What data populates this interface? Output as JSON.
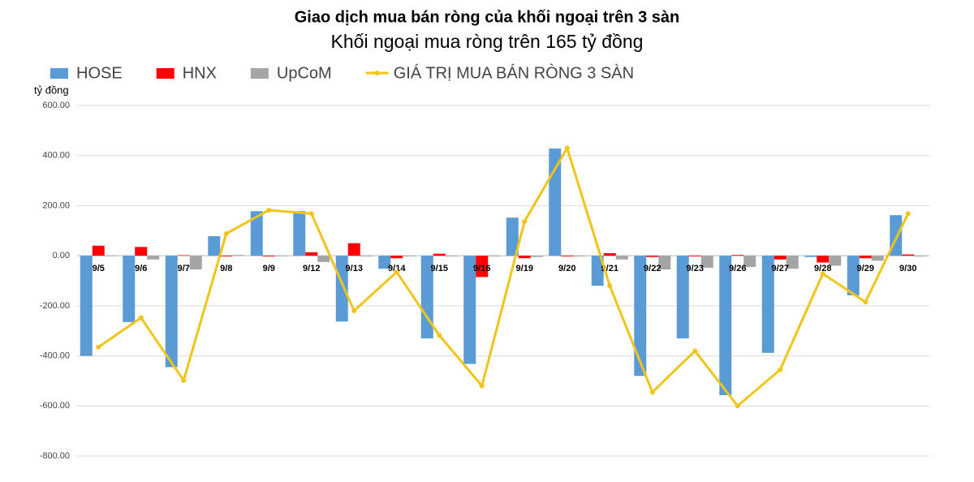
{
  "chart_data": {
    "type": "bar",
    "title": "Giao dịch mua bán ròng của khối ngoại trên 3 sàn",
    "subtitle": "Khối ngoại mua ròng trên 165 tỷ đồng",
    "y_label": "tỷ đồng",
    "categories": [
      "9/5",
      "9/6",
      "9/7",
      "9/8",
      "9/9",
      "9/12",
      "9/13",
      "9/14",
      "9/15",
      "9/16",
      "9/19",
      "9/20",
      "9/21",
      "9/22",
      "9/23",
      "9/26",
      "9/27",
      "9/28",
      "9/29",
      "9/30"
    ],
    "series": [
      {
        "name": "HOSE",
        "type": "bar",
        "color": "#5b9bd5",
        "values": [
          -400,
          -265,
          -445,
          78,
          178,
          178,
          -263,
          -52,
          -330,
          -432,
          152,
          428,
          -120,
          -480,
          -330,
          -557,
          -388,
          -5,
          -158,
          162
        ]
      },
      {
        "name": "HNX",
        "type": "bar",
        "color": "#ff0000",
        "values": [
          40,
          35,
          2,
          -3,
          -3,
          14,
          50,
          -10,
          8,
          -85,
          -10,
          -3,
          10,
          -5,
          -3,
          3,
          -15,
          -27,
          -10,
          5
        ]
      },
      {
        "name": "UpCoM",
        "type": "bar",
        "color": "#a5a5a5",
        "values": [
          -2,
          -15,
          -55,
          3,
          -2,
          -25,
          -3,
          -3,
          -3,
          -3,
          -5,
          -3,
          -15,
          -55,
          -48,
          -45,
          -52,
          -40,
          -20,
          -3
        ]
      },
      {
        "name": "GIÁ TRỊ MUA BÁN RÒNG 3 SÀN",
        "type": "line",
        "color": "#f0c419",
        "values": [
          -365,
          -248,
          -498,
          88,
          182,
          168,
          -220,
          -65,
          -318,
          -520,
          137,
          430,
          -120,
          -545,
          -380,
          -600,
          -455,
          -72,
          -185,
          168
        ]
      }
    ],
    "ylim": [
      -800,
      600
    ],
    "yticks": [
      {
        "value": -800,
        "label": "-800.00"
      },
      {
        "value": -600,
        "label": "-600.00"
      },
      {
        "value": -400,
        "label": "-400.00"
      },
      {
        "value": -200,
        "label": "-200.00"
      },
      {
        "value": 0,
        "label": "0.00"
      },
      {
        "value": 200,
        "label": "200.00"
      },
      {
        "value": 400,
        "label": "400.00"
      },
      {
        "value": 600,
        "label": "600.00"
      }
    ],
    "grid": true
  }
}
